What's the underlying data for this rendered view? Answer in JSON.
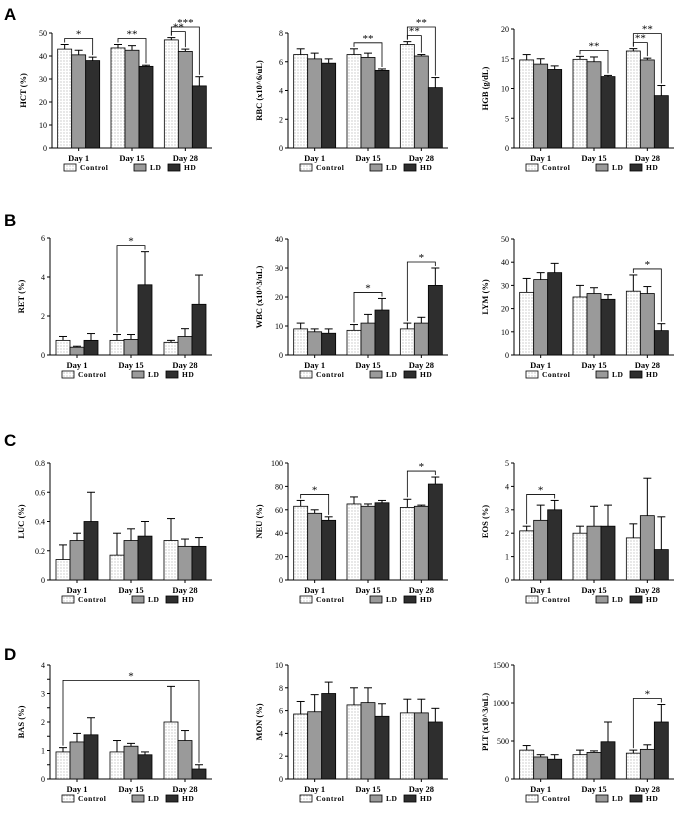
{
  "panel_labels": [
    "A",
    "B",
    "C",
    "D"
  ],
  "legend": [
    "Control",
    "LD",
    "HD"
  ],
  "colors": {
    "control": "#ffffff",
    "ld": "#9a9a9a",
    "hd": "#2e2e2e",
    "stroke": "#000000"
  },
  "chart_data": [
    {
      "type": "bar",
      "id": "hct",
      "ylabel": "HCT (%)",
      "ylim": [
        0,
        50
      ],
      "yticks": [
        0,
        10,
        20,
        30,
        40,
        50
      ],
      "categories": [
        "Day 1",
        "Day 15",
        "Day 28"
      ],
      "series": [
        {
          "name": "Control",
          "values": [
            43,
            43.5,
            47
          ],
          "err": [
            2,
            1.5,
            1
          ]
        },
        {
          "name": "LD",
          "values": [
            40.5,
            42.5,
            42
          ],
          "err": [
            2,
            2,
            1
          ]
        },
        {
          "name": "HD",
          "values": [
            38,
            35.5,
            27
          ],
          "err": [
            1.5,
            0.5,
            4
          ]
        }
      ],
      "annotations": [
        {
          "from": [
            0,
            0
          ],
          "to": [
            0,
            2
          ],
          "label": "*"
        },
        {
          "from": [
            1,
            0
          ],
          "to": [
            1,
            2
          ],
          "label": "**"
        },
        {
          "from": [
            2,
            0
          ],
          "to": [
            2,
            1
          ],
          "label": "**"
        },
        {
          "from": [
            2,
            0
          ],
          "to": [
            2,
            2
          ],
          "label": "***"
        }
      ]
    },
    {
      "type": "bar",
      "id": "rbc",
      "ylabel": "RBC (x10^6/uL)",
      "ylim": [
        0,
        8
      ],
      "yticks": [
        0,
        2,
        4,
        6,
        8
      ],
      "categories": [
        "Day 1",
        "Day 15",
        "Day 28"
      ],
      "series": [
        {
          "name": "Control",
          "values": [
            6.5,
            6.5,
            7.2
          ],
          "err": [
            0.4,
            0.4,
            0.2
          ]
        },
        {
          "name": "LD",
          "values": [
            6.2,
            6.3,
            6.4
          ],
          "err": [
            0.4,
            0.3,
            0.1
          ]
        },
        {
          "name": "HD",
          "values": [
            5.9,
            5.4,
            4.2
          ],
          "err": [
            0.3,
            0.1,
            0.7
          ]
        }
      ],
      "annotations": [
        {
          "from": [
            1,
            0
          ],
          "to": [
            1,
            2
          ],
          "label": "**"
        },
        {
          "from": [
            2,
            0
          ],
          "to": [
            2,
            1
          ],
          "label": "**"
        },
        {
          "from": [
            2,
            0
          ],
          "to": [
            2,
            2
          ],
          "label": "**"
        }
      ]
    },
    {
      "type": "bar",
      "id": "hgb",
      "ylabel": "HGB (g/dL)",
      "ylim": [
        0,
        20
      ],
      "yticks": [
        0,
        5,
        10,
        15,
        20
      ],
      "categories": [
        "Day 1",
        "Day 15",
        "Day 28"
      ],
      "series": [
        {
          "name": "Control",
          "values": [
            14.8,
            14.9,
            16.3
          ],
          "err": [
            0.9,
            0.5,
            0.4
          ]
        },
        {
          "name": "LD",
          "values": [
            14.1,
            14.5,
            14.8
          ],
          "err": [
            0.9,
            0.8,
            0.3
          ]
        },
        {
          "name": "HD",
          "values": [
            13.2,
            12,
            8.8
          ],
          "err": [
            0.6,
            0.2,
            1.7
          ]
        }
      ],
      "annotations": [
        {
          "from": [
            1,
            0
          ],
          "to": [
            1,
            2
          ],
          "label": "**"
        },
        {
          "from": [
            2,
            0
          ],
          "to": [
            2,
            1
          ],
          "label": "**"
        },
        {
          "from": [
            2,
            0
          ],
          "to": [
            2,
            2
          ],
          "label": "**"
        }
      ]
    },
    {
      "type": "bar",
      "id": "ret",
      "ylabel": "RET (%)",
      "ylim": [
        0,
        6
      ],
      "yticks": [
        0,
        2,
        4,
        6
      ],
      "categories": [
        "Day 1",
        "Day 15",
        "Day 28"
      ],
      "series": [
        {
          "name": "Control",
          "values": [
            0.75,
            0.75,
            0.65
          ],
          "err": [
            0.2,
            0.3,
            0.1
          ]
        },
        {
          "name": "LD",
          "values": [
            0.4,
            0.8,
            0.95
          ],
          "err": [
            0.05,
            0.25,
            0.4
          ]
        },
        {
          "name": "HD",
          "values": [
            0.75,
            3.6,
            2.6
          ],
          "err": [
            0.35,
            1.7,
            1.5
          ]
        }
      ],
      "annotations": [
        {
          "from": [
            1,
            0
          ],
          "to": [
            1,
            2
          ],
          "label": "*"
        }
      ]
    },
    {
      "type": "bar",
      "id": "wbc",
      "ylabel": "WBC (x10^3/uL)",
      "ylim": [
        0,
        40
      ],
      "yticks": [
        0,
        10,
        20,
        30,
        40
      ],
      "categories": [
        "Day 1",
        "Day 15",
        "Day 28"
      ],
      "series": [
        {
          "name": "Control",
          "values": [
            9,
            8.5,
            9
          ],
          "err": [
            2,
            2,
            2
          ]
        },
        {
          "name": "LD",
          "values": [
            8,
            11,
            11
          ],
          "err": [
            1,
            3,
            2
          ]
        },
        {
          "name": "HD",
          "values": [
            7.5,
            15.5,
            24
          ],
          "err": [
            1.5,
            4,
            6
          ]
        }
      ],
      "annotations": [
        {
          "from": [
            1,
            0
          ],
          "to": [
            1,
            2
          ],
          "label": "*"
        },
        {
          "from": [
            2,
            0
          ],
          "to": [
            2,
            2
          ],
          "label": "*"
        }
      ]
    },
    {
      "type": "bar",
      "id": "lym",
      "ylabel": "LYM (%)",
      "ylim": [
        0,
        50
      ],
      "yticks": [
        0,
        10,
        20,
        30,
        40,
        50
      ],
      "categories": [
        "Day 1",
        "Day 15",
        "Day 28"
      ],
      "series": [
        {
          "name": "Control",
          "values": [
            27,
            25,
            27.5
          ],
          "err": [
            6,
            5,
            7
          ]
        },
        {
          "name": "LD",
          "values": [
            32.5,
            26.5,
            26.5
          ],
          "err": [
            3,
            2.5,
            3
          ]
        },
        {
          "name": "HD",
          "values": [
            35.5,
            24,
            10.5
          ],
          "err": [
            4,
            2,
            3
          ]
        }
      ],
      "annotations": [
        {
          "from": [
            2,
            0
          ],
          "to": [
            2,
            2
          ],
          "label": "*"
        }
      ]
    },
    {
      "type": "bar",
      "id": "luc",
      "ylabel": "LUC (%)",
      "ylim": [
        0,
        0.8
      ],
      "yticks": [
        0,
        0.2,
        0.4,
        0.6,
        0.8
      ],
      "categories": [
        "Day 1",
        "Day 15",
        "Day 28"
      ],
      "series": [
        {
          "name": "Control",
          "values": [
            0.14,
            0.17,
            0.27
          ],
          "err": [
            0.1,
            0.15,
            0.15
          ]
        },
        {
          "name": "LD",
          "values": [
            0.27,
            0.27,
            0.23
          ],
          "err": [
            0.05,
            0.08,
            0.05
          ]
        },
        {
          "name": "HD",
          "values": [
            0.4,
            0.3,
            0.23
          ],
          "err": [
            0.2,
            0.1,
            0.06
          ]
        }
      ],
      "annotations": []
    },
    {
      "type": "bar",
      "id": "neu",
      "ylabel": "NEU (%)",
      "ylim": [
        0,
        100
      ],
      "yticks": [
        0,
        20,
        40,
        60,
        80,
        100
      ],
      "categories": [
        "Day 1",
        "Day 15",
        "Day 28"
      ],
      "series": [
        {
          "name": "Control",
          "values": [
            63,
            65,
            62
          ],
          "err": [
            5,
            6,
            7
          ]
        },
        {
          "name": "LD",
          "values": [
            57,
            63,
            63
          ],
          "err": [
            3,
            2,
            1
          ]
        },
        {
          "name": "HD",
          "values": [
            51,
            66,
            82
          ],
          "err": [
            3,
            2,
            6
          ]
        }
      ],
      "annotations": [
        {
          "from": [
            0,
            0
          ],
          "to": [
            0,
            2
          ],
          "label": "*"
        },
        {
          "from": [
            2,
            0
          ],
          "to": [
            2,
            2
          ],
          "label": "*"
        }
      ]
    },
    {
      "type": "bar",
      "id": "eos",
      "ylabel": "EOS (%)",
      "ylim": [
        0,
        5
      ],
      "yticks": [
        0,
        1,
        2,
        3,
        4,
        5
      ],
      "categories": [
        "Day 1",
        "Day 15",
        "Day 28"
      ],
      "series": [
        {
          "name": "Control",
          "values": [
            2.1,
            2,
            1.8
          ],
          "err": [
            0.2,
            0.3,
            0.6
          ]
        },
        {
          "name": "LD",
          "values": [
            2.55,
            2.3,
            2.75
          ],
          "err": [
            0.65,
            0.85,
            1.6
          ]
        },
        {
          "name": "HD",
          "values": [
            3,
            2.3,
            1.3
          ],
          "err": [
            0.4,
            0.9,
            1.4
          ]
        }
      ],
      "annotations": [
        {
          "from": [
            0,
            0
          ],
          "to": [
            0,
            2
          ],
          "label": "*"
        }
      ]
    },
    {
      "type": "bar",
      "id": "bas",
      "ylabel": "BAS (%)",
      "ylim": [
        0,
        4
      ],
      "yticks": [
        0,
        0.5,
        1,
        1.5,
        2,
        2.5,
        3,
        3.5,
        4
      ],
      "ytick_labels": [
        "0",
        "",
        "1",
        "",
        "2",
        "",
        "3",
        "",
        "4"
      ],
      "categories": [
        "Day 1",
        "Day 15",
        "Day 28"
      ],
      "series": [
        {
          "name": "Control",
          "values": [
            0.95,
            0.95,
            2
          ],
          "err": [
            0.15,
            0.4,
            1.25
          ]
        },
        {
          "name": "LD",
          "values": [
            1.3,
            1.15,
            1.35
          ],
          "err": [
            0.3,
            0.1,
            0.35
          ]
        },
        {
          "name": "HD",
          "values": [
            1.55,
            0.85,
            0.35
          ],
          "err": [
            0.6,
            0.1,
            0.15
          ]
        }
      ],
      "annotations": [
        {
          "from": [
            0,
            0
          ],
          "to": [
            2,
            2
          ],
          "label": "*"
        }
      ]
    },
    {
      "type": "bar",
      "id": "mon",
      "ylabel": "MON (%)",
      "ylim": [
        0,
        10
      ],
      "yticks": [
        0,
        2,
        4,
        6,
        8,
        10
      ],
      "categories": [
        "Day 1",
        "Day 15",
        "Day 28"
      ],
      "series": [
        {
          "name": "Control",
          "values": [
            5.7,
            6.5,
            5.8
          ],
          "err": [
            1.1,
            1.5,
            1.2
          ]
        },
        {
          "name": "LD",
          "values": [
            5.9,
            6.7,
            5.8
          ],
          "err": [
            1.5,
            1.3,
            1.2
          ]
        },
        {
          "name": "HD",
          "values": [
            7.5,
            5.5,
            5
          ],
          "err": [
            1,
            1.1,
            1.2
          ]
        }
      ],
      "annotations": []
    },
    {
      "type": "bar",
      "id": "plt",
      "ylabel": "PLT (x10^3/uL)",
      "ylim": [
        0,
        1500
      ],
      "yticks": [
        0,
        500,
        1000,
        1500
      ],
      "categories": [
        "Day 1",
        "Day 15",
        "Day 28"
      ],
      "series": [
        {
          "name": "Control",
          "values": [
            380,
            320,
            340
          ],
          "err": [
            60,
            60,
            40
          ]
        },
        {
          "name": "LD",
          "values": [
            290,
            350,
            390
          ],
          "err": [
            30,
            20,
            60
          ]
        },
        {
          "name": "HD",
          "values": [
            260,
            490,
            750
          ],
          "err": [
            60,
            260,
            230
          ]
        }
      ],
      "annotations": [
        {
          "from": [
            2,
            0
          ],
          "to": [
            2,
            2
          ],
          "label": "*"
        }
      ]
    }
  ]
}
